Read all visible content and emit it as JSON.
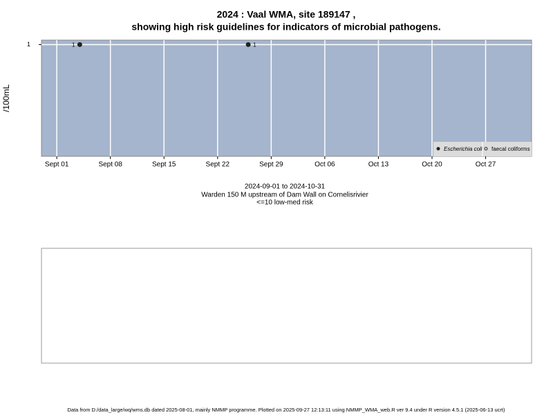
{
  "chart_data": {
    "type": "scatter",
    "title": "2024 : Vaal WMA, site 189147 ,",
    "subtitle": "showing high risk guidelines for indicators of microbial pathogens.",
    "ylabel": "/100mL",
    "annotations": [
      "2024-09-01 to 2024-10-31",
      "Warden 150 M upstream of Dam Wall on Cornelisrivier",
      "<=10 low-med risk"
    ],
    "caption": "Data from D:/data_large/wq/wms.db dated 2025-08-01, mainly NMMP programme. Plotted on 2025-09-27 12:13:11 using NMMP_WMA_web.R ver 9.4 under R version 4.5.1 (2025-06-13 ucrt)",
    "xlim": [
      "2024-08-30",
      "2024-11-02"
    ],
    "xticks": [
      {
        "value": "2024-09-01",
        "label": "Sept 01"
      },
      {
        "value": "2024-09-08",
        "label": "Sept 08"
      },
      {
        "value": "2024-09-15",
        "label": "Sept 15"
      },
      {
        "value": "2024-09-22",
        "label": "Sept 22"
      },
      {
        "value": "2024-09-29",
        "label": "Sept 29"
      },
      {
        "value": "2024-10-06",
        "label": "Oct 06"
      },
      {
        "value": "2024-10-13",
        "label": "Oct 13"
      },
      {
        "value": "2024-10-20",
        "label": "Oct 20"
      },
      {
        "value": "2024-10-27",
        "label": "Oct 27"
      }
    ],
    "ylim": [
      0,
      1.04
    ],
    "yticks": [
      1
    ],
    "grid": true,
    "background": "#a5b5cd",
    "legend": "bottom-right",
    "series": [
      {
        "name": "Escherichia coli",
        "color": "#222222",
        "filled": true,
        "x": [
          "2024-09-04",
          "2024-09-26"
        ],
        "values": [
          1,
          1
        ]
      },
      {
        "name": "faecal coliforms",
        "color": "#222222",
        "filled": false,
        "x": [],
        "values": []
      }
    ]
  }
}
